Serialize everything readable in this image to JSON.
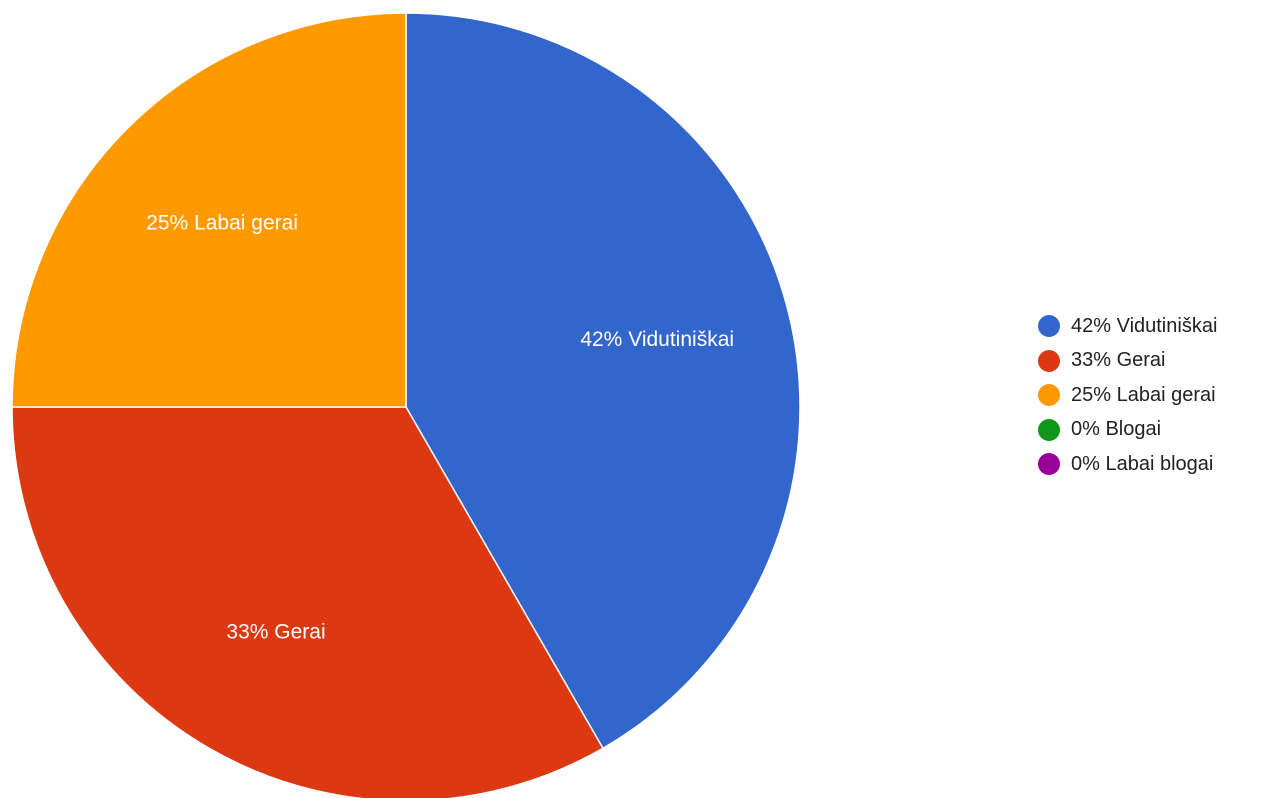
{
  "chart_data": {
    "type": "pie",
    "slices": [
      {
        "label": "Vidutiniškai",
        "value": 41.67,
        "display": "42% Vidutiniškai",
        "color": "#3366cc"
      },
      {
        "label": "Gerai",
        "value": 33.33,
        "display": "33% Gerai",
        "color": "#dc3912"
      },
      {
        "label": "Labai gerai",
        "value": 25.0,
        "display": "25% Labai gerai",
        "color": "#ff9900"
      },
      {
        "label": "Blogai",
        "value": 0,
        "display": "0% Blogai",
        "color": "#109618"
      },
      {
        "label": "Labai blogai",
        "value": 0,
        "display": "0% Labai blogai",
        "color": "#990099"
      }
    ],
    "start": "12 o'clock",
    "direction": "clockwise",
    "legend_position": "right"
  }
}
